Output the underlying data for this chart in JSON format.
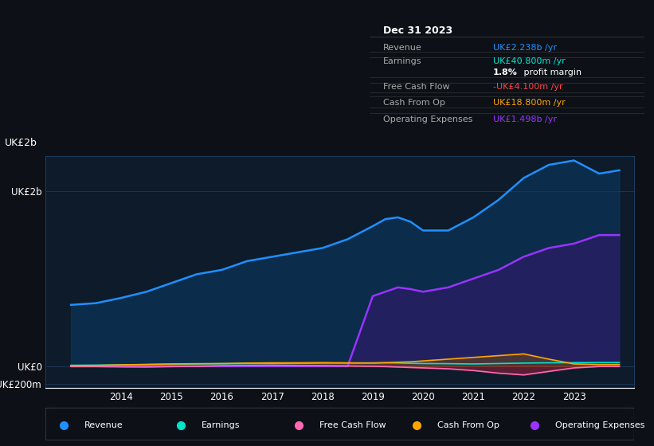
{
  "bg_color": "#0d1117",
  "plot_bg_color": "#0d1b2a",
  "grid_color": "#1e3a5f",
  "title_box_bg": "#0a0a0a",
  "ylabel_top": "UK£2b",
  "ylabel_zero": "UK£0",
  "ylabel_neg": "-UK£200m",
  "xlim": [
    2012.5,
    2024.2
  ],
  "ylim": [
    -250000000,
    2400000000
  ],
  "yticks": [
    -200000000,
    0,
    2000000000
  ],
  "ytick_labels": [
    "-UK£200m",
    "UK£0",
    "UK£2b"
  ],
  "xticks": [
    2014,
    2015,
    2016,
    2017,
    2018,
    2019,
    2020,
    2021,
    2022,
    2023
  ],
  "info_box": {
    "title": "Dec 31 2023",
    "rows": [
      {
        "label": "Revenue",
        "value": "UK£2.238b /yr",
        "value_color": "#1e90ff"
      },
      {
        "label": "Earnings",
        "value": "UK£40.800m /yr",
        "value_color": "#00e5cc"
      },
      {
        "label": "",
        "value": "1.8% profit margin",
        "value_color": "#ffffff",
        "bold_part": "1.8%"
      },
      {
        "label": "Free Cash Flow",
        "value": "-UK£4.100m /yr",
        "value_color": "#ff4444"
      },
      {
        "label": "Cash From Op",
        "value": "UK£18.800m /yr",
        "value_color": "#ffa500"
      },
      {
        "label": "Operating Expenses",
        "value": "UK£1.498b /yr",
        "value_color": "#9933ff"
      }
    ]
  },
  "legend": [
    {
      "label": "Revenue",
      "color": "#1e90ff"
    },
    {
      "label": "Earnings",
      "color": "#00e5cc"
    },
    {
      "label": "Free Cash Flow",
      "color": "#ff69b4"
    },
    {
      "label": "Cash From Op",
      "color": "#ffa500"
    },
    {
      "label": "Operating Expenses",
      "color": "#9933ff"
    }
  ],
  "series": {
    "years": [
      2013,
      2013.5,
      2014,
      2014.5,
      2015,
      2015.5,
      2016,
      2016.5,
      2017,
      2017.5,
      2018,
      2018.5,
      2019,
      2019.25,
      2019.5,
      2019.75,
      2020,
      2020.5,
      2021,
      2021.5,
      2022,
      2022.5,
      2023,
      2023.5,
      2023.9
    ],
    "revenue": [
      700000000,
      720000000,
      780000000,
      850000000,
      950000000,
      1050000000,
      1100000000,
      1200000000,
      1250000000,
      1300000000,
      1350000000,
      1450000000,
      1600000000,
      1680000000,
      1700000000,
      1650000000,
      1550000000,
      1550000000,
      1700000000,
      1900000000,
      2150000000,
      2300000000,
      2350000000,
      2200000000,
      2238000000
    ],
    "earnings": [
      10000000,
      12000000,
      15000000,
      18000000,
      22000000,
      25000000,
      28000000,
      30000000,
      30000000,
      32000000,
      35000000,
      35000000,
      38000000,
      38000000,
      36000000,
      32000000,
      30000000,
      28000000,
      25000000,
      30000000,
      35000000,
      38000000,
      40000000,
      40800000,
      40800000
    ],
    "free_cash_flow": [
      -5000000,
      -5000000,
      -8000000,
      -10000000,
      -5000000,
      -3000000,
      5000000,
      8000000,
      10000000,
      8000000,
      5000000,
      2000000,
      -2000000,
      -5000000,
      -10000000,
      -15000000,
      -20000000,
      -30000000,
      -50000000,
      -80000000,
      -100000000,
      -60000000,
      -20000000,
      -4100000,
      -4100000
    ],
    "cash_from_op": [
      5000000,
      8000000,
      15000000,
      20000000,
      25000000,
      28000000,
      30000000,
      35000000,
      38000000,
      38000000,
      40000000,
      38000000,
      35000000,
      40000000,
      45000000,
      50000000,
      60000000,
      80000000,
      100000000,
      120000000,
      140000000,
      80000000,
      25000000,
      18800000,
      18800000
    ],
    "op_expenses": [
      0,
      0,
      0,
      0,
      0,
      0,
      0,
      0,
      0,
      0,
      0,
      0,
      800000000,
      850000000,
      900000000,
      880000000,
      850000000,
      900000000,
      1000000000,
      1100000000,
      1250000000,
      1350000000,
      1400000000,
      1498000000,
      1498000000
    ]
  }
}
